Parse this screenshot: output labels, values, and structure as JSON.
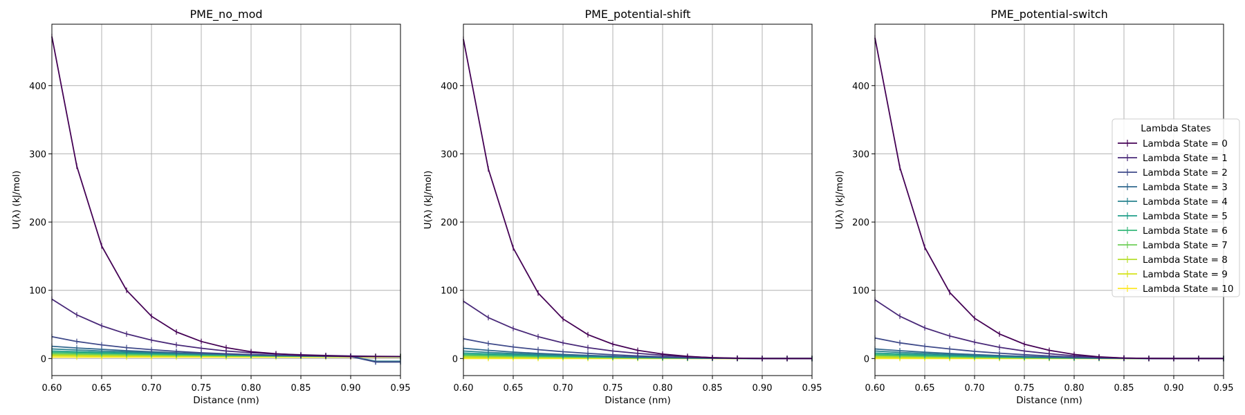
{
  "colors": [
    "#440154",
    "#482878",
    "#3e4989",
    "#31688e",
    "#26828e",
    "#1f9e89",
    "#35b779",
    "#6ece58",
    "#b5de2b",
    "#d4e21a",
    "#fde725"
  ],
  "legend": {
    "title": "Lambda States",
    "placement": "center-right of third panel",
    "labels": [
      "Lambda State = 0",
      "Lambda State = 1",
      "Lambda State = 2",
      "Lambda State = 3",
      "Lambda State = 4",
      "Lambda State = 5",
      "Lambda State = 6",
      "Lambda State = 7",
      "Lambda State = 8",
      "Lambda State = 9",
      "Lambda State = 10"
    ]
  },
  "chart_data": [
    {
      "type": "line",
      "title": "PME_no_mod",
      "xlabel": "Distance (nm)",
      "ylabel": "U(λ) (kJ/mol)",
      "xlim": [
        0.6,
        0.95
      ],
      "ylim": [
        -25,
        490
      ],
      "x_ticks": [
        "0.60",
        "0.65",
        "0.70",
        "0.75",
        "0.80",
        "0.85",
        "0.90",
        "0.95"
      ],
      "y_ticks": [
        "0",
        "100",
        "200",
        "300",
        "400"
      ],
      "grid": true,
      "x": [
        0.6,
        0.625,
        0.65,
        0.675,
        0.7,
        0.725,
        0.75,
        0.775,
        0.8,
        0.825,
        0.85,
        0.875,
        0.9,
        0.925,
        0.95
      ],
      "series": [
        {
          "name": "Lambda State = 0",
          "values": [
            472,
            282,
            165,
            100,
            62,
            39,
            25,
            16,
            10,
            7,
            5,
            4,
            3,
            3,
            3
          ]
        },
        {
          "name": "Lambda State = 1",
          "values": [
            87,
            64,
            48,
            36,
            27,
            20,
            15,
            11,
            8.5,
            6.8,
            5.5,
            4.5,
            3.8,
            3.2,
            3
          ]
        },
        {
          "name": "Lambda State = 2",
          "values": [
            32,
            25,
            20,
            16,
            13,
            10.5,
            8.5,
            7,
            5.8,
            4.9,
            4.2,
            3.6,
            3,
            -5,
            -5
          ]
        },
        {
          "name": "Lambda State = 3",
          "values": [
            18,
            15.5,
            13.5,
            11.5,
            10,
            8.5,
            7.3,
            6.3,
            5.4,
            4.6,
            4,
            3.5,
            3,
            -5,
            -5
          ]
        },
        {
          "name": "Lambda State = 4",
          "values": [
            14,
            12.5,
            11,
            9.8,
            8.7,
            7.6,
            6.7,
            5.9,
            5.2,
            4.5,
            4,
            3.5,
            3,
            -4,
            -4
          ]
        },
        {
          "name": "Lambda State = 5",
          "values": [
            11,
            10,
            9,
            8.2,
            7.4,
            6.6,
            5.9,
            5.3,
            4.7,
            4.2,
            3.7,
            3.3,
            3,
            2.8,
            2.7
          ]
        },
        {
          "name": "Lambda State = 6",
          "values": [
            9,
            8.3,
            7.6,
            7,
            6.4,
            5.8,
            5.3,
            4.8,
            4.3,
            3.9,
            3.5,
            3.2,
            3,
            2.8,
            2.7
          ]
        },
        {
          "name": "Lambda State = 7",
          "values": [
            7,
            6.5,
            6,
            5.6,
            5.2,
            4.8,
            4.4,
            4.1,
            3.8,
            3.5,
            3.3,
            3.1,
            3,
            2.9,
            2.8
          ]
        },
        {
          "name": "Lambda State = 8",
          "values": [
            5.5,
            5.2,
            4.9,
            4.6,
            4.3,
            4.1,
            3.9,
            3.7,
            3.5,
            3.3,
            3.2,
            3.1,
            3,
            2.9,
            2.9
          ]
        },
        {
          "name": "Lambda State = 9",
          "values": [
            4,
            3.9,
            3.8,
            3.7,
            3.6,
            3.5,
            3.4,
            3.3,
            3.2,
            3.1,
            3.1,
            3,
            3,
            3,
            3
          ]
        },
        {
          "name": "Lambda State = 10",
          "values": [
            2,
            2,
            2,
            2,
            2,
            2,
            2,
            2,
            2,
            2,
            2,
            2,
            2,
            2,
            2
          ]
        }
      ]
    },
    {
      "type": "line",
      "title": "PME_potential-shift",
      "xlabel": "Distance (nm)",
      "ylabel": "U(λ) (kJ/mol)",
      "xlim": [
        0.6,
        0.95
      ],
      "ylim": [
        -25,
        490
      ],
      "x_ticks": [
        "0.60",
        "0.65",
        "0.70",
        "0.75",
        "0.80",
        "0.85",
        "0.90",
        "0.95"
      ],
      "y_ticks": [
        "0",
        "100",
        "200",
        "300",
        "400"
      ],
      "grid": true,
      "x": [
        0.6,
        0.625,
        0.65,
        0.675,
        0.7,
        0.725,
        0.75,
        0.775,
        0.8,
        0.825,
        0.85,
        0.875,
        0.9,
        0.925,
        0.95
      ],
      "series": [
        {
          "name": "Lambda State = 0",
          "values": [
            468,
            278,
            162,
            96,
            58,
            35,
            21,
            12,
            6.5,
            3.2,
            1.2,
            0.3,
            0,
            0,
            0
          ]
        },
        {
          "name": "Lambda State = 1",
          "values": [
            84,
            60,
            44,
            32,
            23,
            16,
            11,
            7.5,
            4.8,
            2.8,
            1.4,
            0.5,
            0,
            0,
            0
          ]
        },
        {
          "name": "Lambda State = 2",
          "values": [
            29,
            22,
            17,
            13,
            10,
            7.5,
            5.5,
            3.9,
            2.6,
            1.6,
            0.8,
            0.3,
            0,
            0,
            0
          ]
        },
        {
          "name": "Lambda State = 3",
          "values": [
            15,
            12,
            9.5,
            7.5,
            6,
            4.6,
            3.5,
            2.5,
            1.7,
            1.1,
            0.6,
            0.2,
            0,
            0,
            0
          ]
        },
        {
          "name": "Lambda State = 4",
          "values": [
            11,
            9,
            7.4,
            6,
            4.8,
            3.8,
            2.9,
            2.1,
            1.5,
            0.9,
            0.5,
            0.2,
            0,
            0,
            0
          ]
        },
        {
          "name": "Lambda State = 5",
          "values": [
            8,
            6.8,
            5.7,
            4.7,
            3.8,
            3,
            2.3,
            1.7,
            1.2,
            0.8,
            0.4,
            0.1,
            0,
            0,
            0
          ]
        },
        {
          "name": "Lambda State = 6",
          "values": [
            6,
            5.2,
            4.4,
            3.7,
            3,
            2.4,
            1.9,
            1.4,
            1,
            0.6,
            0.3,
            0.1,
            0,
            0,
            0
          ]
        },
        {
          "name": "Lambda State = 7",
          "values": [
            4.5,
            3.9,
            3.3,
            2.8,
            2.3,
            1.9,
            1.5,
            1.1,
            0.8,
            0.5,
            0.3,
            0.1,
            0,
            0,
            0
          ]
        },
        {
          "name": "Lambda State = 8",
          "values": [
            3,
            2.6,
            2.3,
            2,
            1.7,
            1.4,
            1.1,
            0.8,
            0.6,
            0.4,
            0.2,
            0.1,
            0,
            0,
            0
          ]
        },
        {
          "name": "Lambda State = 9",
          "values": [
            1.5,
            1.3,
            1.2,
            1,
            0.9,
            0.7,
            0.6,
            0.5,
            0.3,
            0.2,
            0.1,
            0,
            0,
            0,
            0
          ]
        },
        {
          "name": "Lambda State = 10",
          "values": [
            0,
            0,
            0,
            0,
            0,
            0,
            0,
            0,
            0,
            0,
            0,
            0,
            0,
            0,
            0
          ]
        }
      ]
    },
    {
      "type": "line",
      "title": "PME_potential-switch",
      "xlabel": "Distance (nm)",
      "ylabel": "U(λ) (kJ/mol)",
      "xlim": [
        0.6,
        0.95
      ],
      "ylim": [
        -25,
        490
      ],
      "x_ticks": [
        "0.60",
        "0.65",
        "0.70",
        "0.75",
        "0.80",
        "0.85",
        "0.90",
        "0.95"
      ],
      "y_ticks": [
        "0",
        "100",
        "200",
        "300",
        "400"
      ],
      "grid": true,
      "x": [
        0.6,
        0.625,
        0.65,
        0.675,
        0.7,
        0.725,
        0.75,
        0.775,
        0.8,
        0.825,
        0.85,
        0.875,
        0.9,
        0.925,
        0.95
      ],
      "series": [
        {
          "name": "Lambda State = 0",
          "values": [
            470,
            280,
            163,
            97,
            59,
            36,
            21,
            12,
            6,
            2.5,
            0.8,
            0.1,
            0,
            0,
            0
          ]
        },
        {
          "name": "Lambda State = 1",
          "values": [
            86,
            62,
            45,
            33,
            24,
            16.5,
            11,
            7,
            4,
            2,
            0.7,
            0.1,
            0,
            0,
            0
          ]
        },
        {
          "name": "Lambda State = 2",
          "values": [
            30,
            23,
            18,
            14,
            10.5,
            7.8,
            5.6,
            3.8,
            2.3,
            1.2,
            0.4,
            0.1,
            0,
            0,
            0
          ]
        },
        {
          "name": "Lambda State = 3",
          "values": [
            14,
            11.5,
            9.3,
            7.4,
            5.8,
            4.4,
            3.3,
            2.3,
            1.4,
            0.8,
            0.3,
            0,
            0,
            0,
            0
          ]
        },
        {
          "name": "Lambda State = 4",
          "values": [
            11,
            9,
            7.3,
            5.9,
            4.7,
            3.6,
            2.7,
            1.9,
            1.2,
            0.6,
            0.2,
            0,
            0,
            0,
            0
          ]
        },
        {
          "name": "Lambda State = 5",
          "values": [
            8,
            6.7,
            5.5,
            4.5,
            3.6,
            2.8,
            2.1,
            1.5,
            0.9,
            0.5,
            0.2,
            0,
            0,
            0,
            0
          ]
        },
        {
          "name": "Lambda State = 6",
          "values": [
            6,
            5,
            4.2,
            3.5,
            2.8,
            2.2,
            1.6,
            1.1,
            0.7,
            0.4,
            0.1,
            0,
            0,
            0,
            0
          ]
        },
        {
          "name": "Lambda State = 7",
          "values": [
            4.5,
            3.8,
            3.2,
            2.6,
            2.1,
            1.6,
            1.2,
            0.9,
            0.5,
            0.3,
            0.1,
            0,
            0,
            0,
            0
          ]
        },
        {
          "name": "Lambda State = 8",
          "values": [
            3,
            2.5,
            2.1,
            1.8,
            1.4,
            1.1,
            0.8,
            0.6,
            0.4,
            0.2,
            0.1,
            0,
            0,
            0,
            0
          ]
        },
        {
          "name": "Lambda State = 9",
          "values": [
            1.5,
            1.3,
            1.1,
            0.9,
            0.7,
            0.6,
            0.4,
            0.3,
            0.2,
            0.1,
            0,
            0,
            0,
            0,
            0
          ]
        },
        {
          "name": "Lambda State = 10",
          "values": [
            0,
            0,
            0,
            0,
            0,
            0,
            0,
            0,
            0,
            0,
            0,
            0,
            0,
            0,
            0
          ]
        }
      ]
    }
  ]
}
